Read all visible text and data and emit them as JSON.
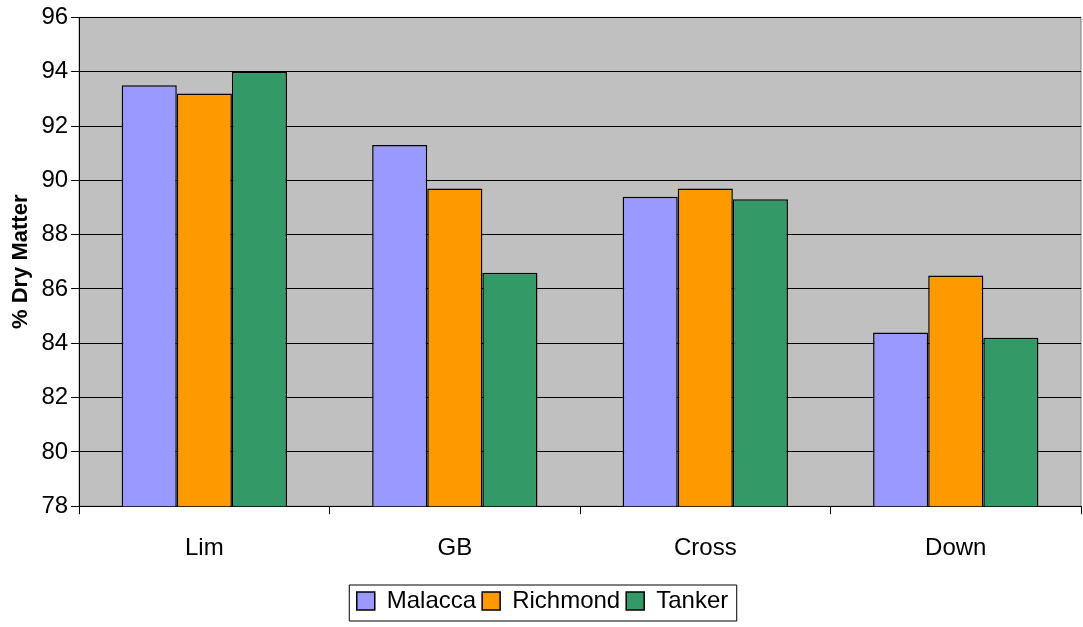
{
  "chart_data": {
    "type": "bar",
    "ylabel": "% Dry Matter",
    "categories": [
      "Lim",
      "GB",
      "Cross",
      "Down"
    ],
    "series": [
      {
        "name": "Malacca",
        "color": "#9999ff",
        "values": [
          93.5,
          91.3,
          89.4,
          84.4
        ]
      },
      {
        "name": "Richmond",
        "color": "#ff9900",
        "values": [
          93.2,
          89.7,
          89.7,
          86.5
        ]
      },
      {
        "name": "Tanker",
        "color": "#339966",
        "values": [
          94.0,
          86.6,
          89.3,
          84.2
        ]
      }
    ],
    "ylim": [
      78,
      96
    ],
    "yticks": [
      78,
      80,
      82,
      84,
      86,
      88,
      90,
      92,
      94,
      96
    ],
    "grid": "y",
    "legend": "bottom"
  }
}
